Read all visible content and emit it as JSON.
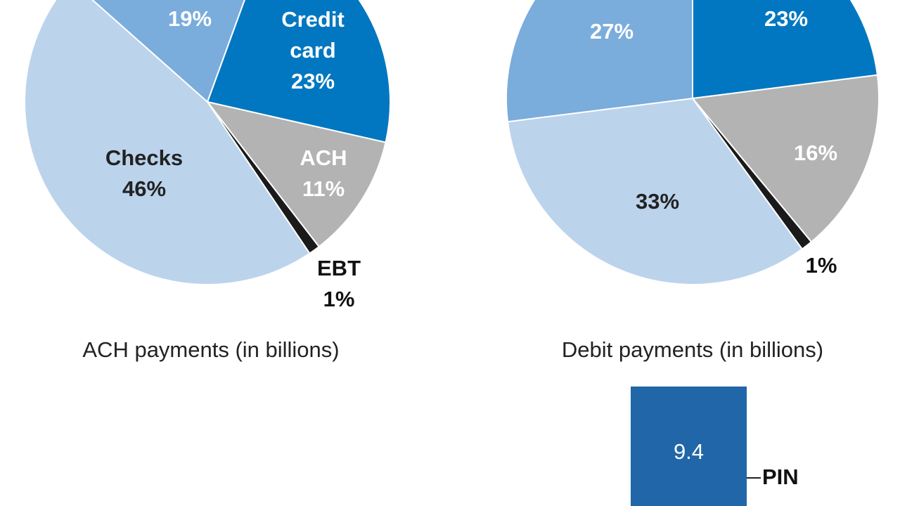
{
  "chart_data": [
    {
      "type": "pie",
      "title": "ACH payments (in billions)",
      "categories": [
        "Credit card",
        "ACH",
        "EBT",
        "Checks",
        null
      ],
      "values": [
        23,
        11,
        1,
        46,
        19
      ],
      "value_labels": [
        "23%",
        "11%",
        "1%",
        "46%",
        "19%"
      ],
      "colors": [
        "#0077c0",
        "#b3b3b3",
        "#1a1a1a",
        "#bcd3ec",
        "#7aacdc"
      ]
    },
    {
      "type": "pie",
      "title": "Debit payments (in billions)",
      "values": [
        23,
        16,
        1,
        33,
        27
      ],
      "value_labels": [
        "23%",
        "16%",
        "1%",
        "33%",
        "27%"
      ],
      "colors": [
        "#0077c0",
        "#b3b3b3",
        "#1a1a1a",
        "#bcd3ec",
        "#7aacdc"
      ]
    },
    {
      "type": "bar",
      "categories": [
        "PIN"
      ],
      "values": [
        9.4
      ],
      "color": "#2166a8"
    }
  ]
}
